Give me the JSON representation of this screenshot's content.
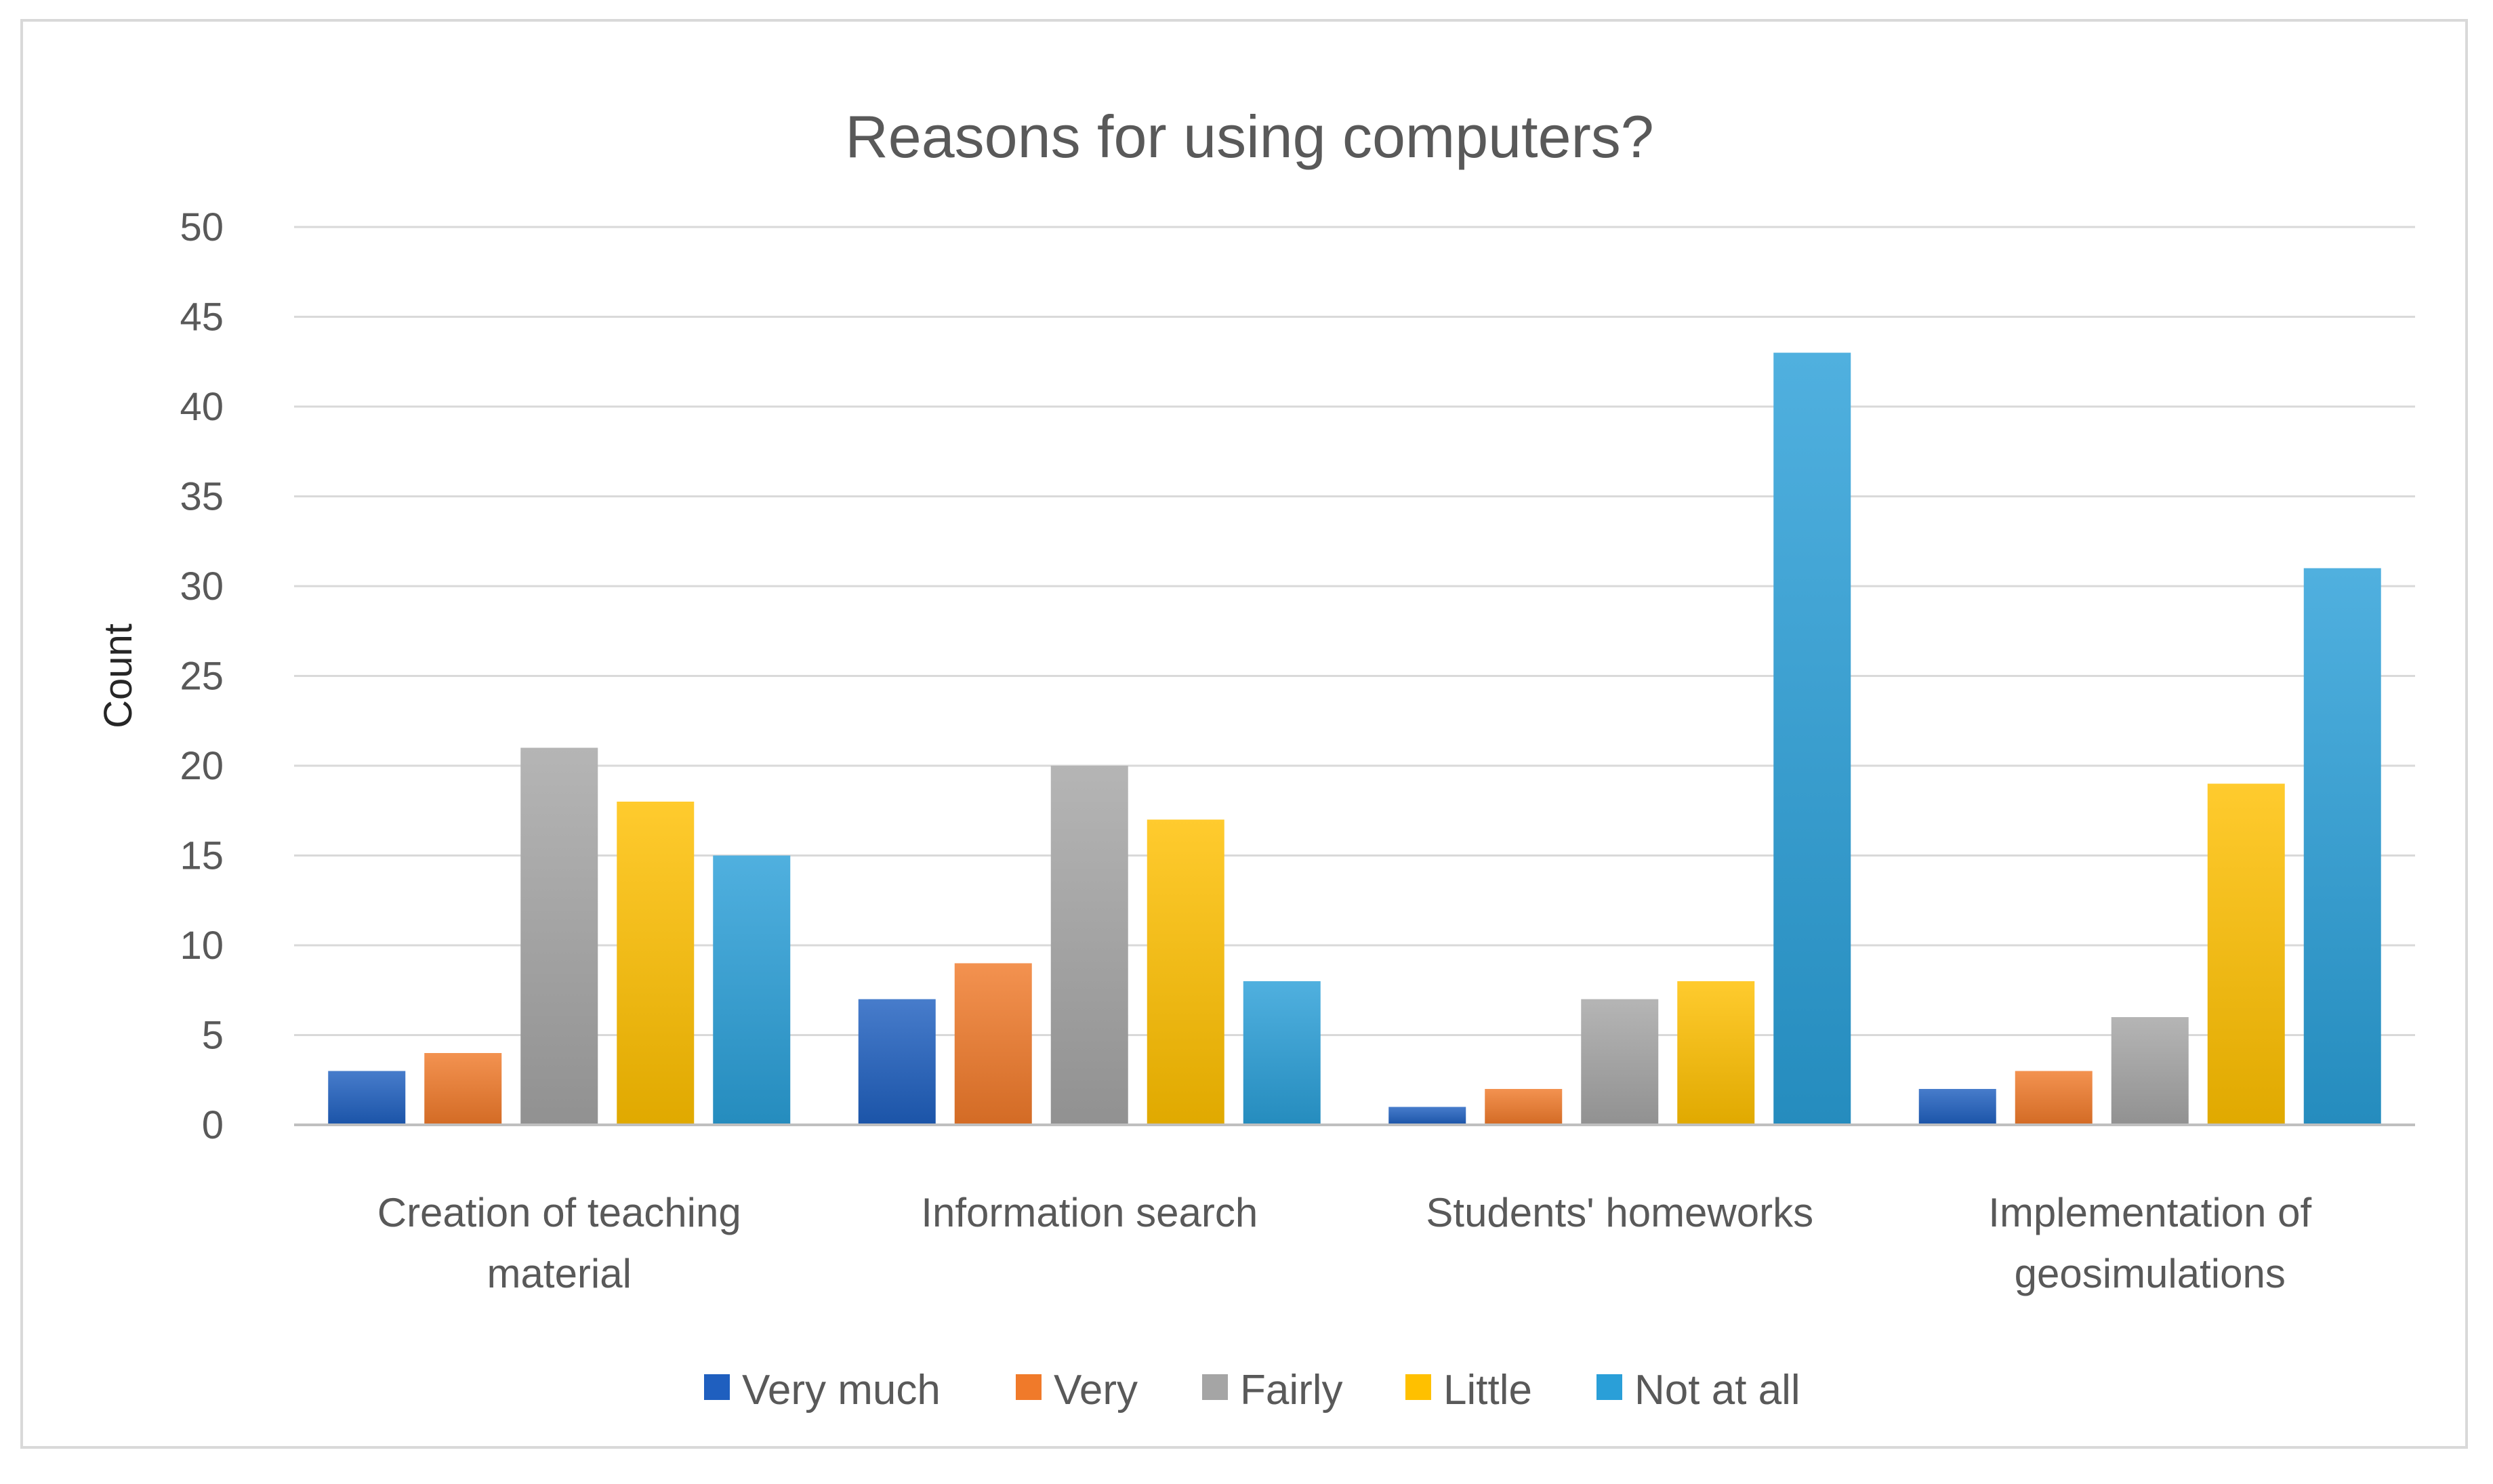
{
  "chart_data": {
    "type": "bar",
    "title": "Reasons for using computers?",
    "xlabel": "",
    "ylabel": "Count",
    "ylim": [
      0,
      50
    ],
    "yticks": [
      0,
      5,
      10,
      15,
      20,
      25,
      30,
      35,
      40,
      45,
      50
    ],
    "grid": true,
    "legend_position": "bottom",
    "categories": [
      [
        "Creation of teaching",
        "material"
      ],
      [
        "Information search"
      ],
      [
        "Students' homeworks"
      ],
      [
        "Implementation of",
        "geosimulations"
      ]
    ],
    "series": [
      {
        "name": "Very much",
        "color": "#1f5fbf",
        "values": [
          3,
          7,
          1,
          2
        ]
      },
      {
        "name": "Very",
        "color": "#f07a2a",
        "values": [
          4,
          9,
          2,
          3
        ]
      },
      {
        "name": "Fairly",
        "color": "#a5a5a5",
        "values": [
          21,
          20,
          7,
          6
        ]
      },
      {
        "name": "Little",
        "color": "#ffc000",
        "values": [
          18,
          17,
          8,
          19
        ]
      },
      {
        "name": "Not at all",
        "color": "#2a9fd8",
        "values": [
          15,
          8,
          43,
          31
        ]
      }
    ]
  }
}
